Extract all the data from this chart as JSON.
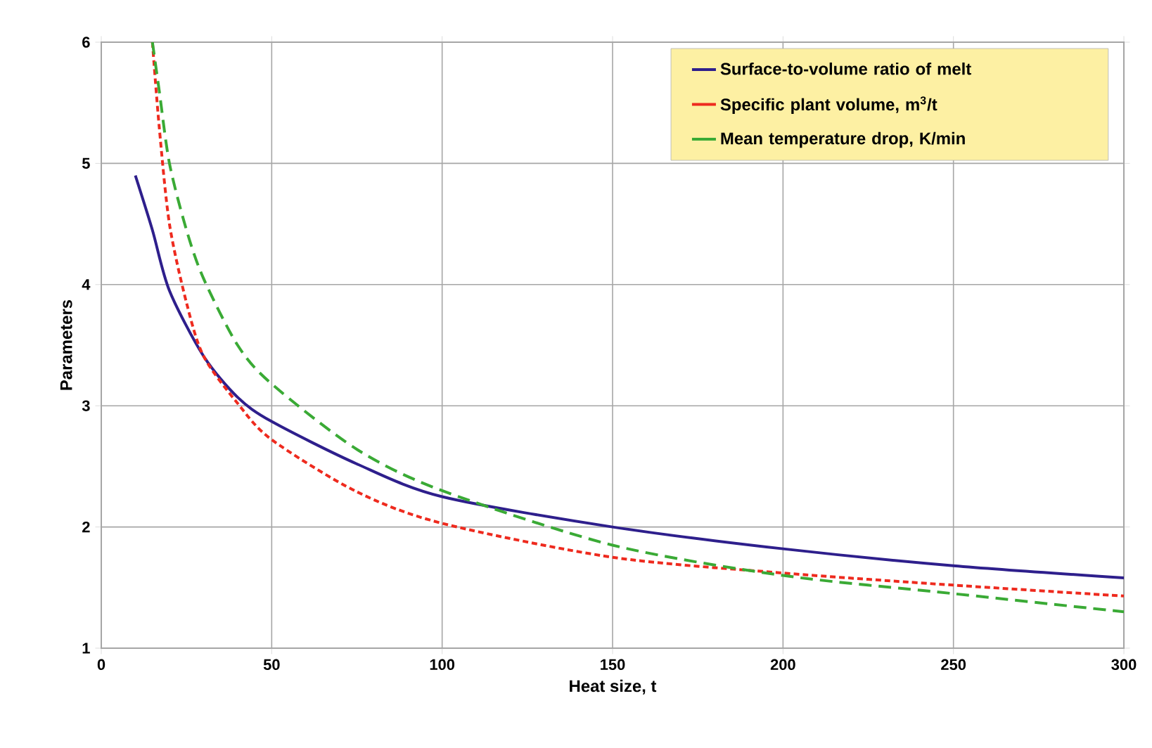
{
  "chart_data": {
    "type": "line",
    "xlabel": "Heat size, t",
    "ylabel": "Parameters",
    "xlim": [
      0,
      300
    ],
    "ylim": [
      1,
      6
    ],
    "xticks": [
      0,
      50,
      100,
      150,
      200,
      250,
      300
    ],
    "yticks": [
      1,
      2,
      3,
      4,
      5,
      6
    ],
    "grid": true,
    "legend": "top right",
    "marker": "none",
    "series": [
      {
        "name": "Surface-to-volume ratio of melt",
        "color": "#2e1f8c",
        "line_style": "solid",
        "x": [
          10,
          15,
          20,
          30,
          40,
          50,
          75,
          100,
          150,
          200,
          250,
          300
        ],
        "values": [
          4.9,
          4.45,
          3.95,
          3.41,
          3.07,
          2.87,
          2.52,
          2.25,
          2.0,
          1.82,
          1.68,
          1.58
        ]
      },
      {
        "name": "Specific plant volume, m$^{3}$/t",
        "color": "#ee2a1e",
        "line_style": "dotted",
        "x": [
          15,
          17,
          20,
          25,
          30,
          40,
          50,
          75,
          100,
          150,
          200,
          250,
          300
        ],
        "values": [
          6.0,
          5.3,
          4.5,
          3.85,
          3.41,
          3.02,
          2.72,
          2.29,
          2.03,
          1.75,
          1.62,
          1.52,
          1.43
        ]
      },
      {
        "name": "Mean temperature drop, K/min",
        "color": "#3aaa35",
        "line_style": "dashed",
        "x": [
          15,
          17,
          20,
          25,
          30,
          40,
          50,
          75,
          100,
          150,
          200,
          250,
          300
        ],
        "values": [
          6.0,
          5.6,
          5.0,
          4.45,
          4.05,
          3.5,
          3.18,
          2.64,
          2.3,
          1.85,
          1.6,
          1.45,
          1.3
        ]
      }
    ]
  }
}
